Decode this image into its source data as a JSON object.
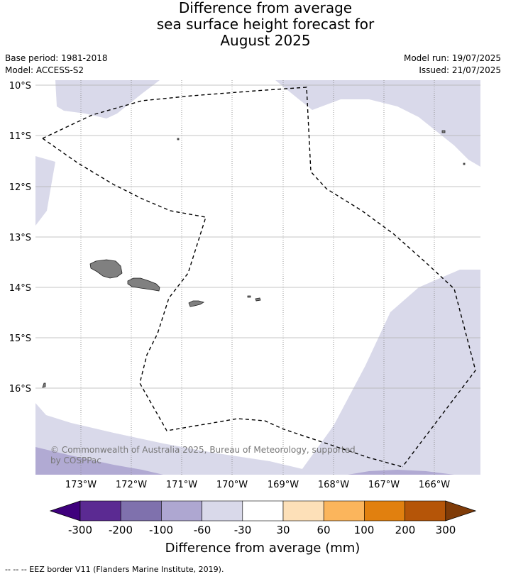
{
  "title_lines": [
    "Difference from average",
    "sea surface height forecast for",
    "August 2025"
  ],
  "meta": {
    "base_period": "Base period: 1981-2018",
    "model": "Model: ACCESS-S2",
    "model_run": "Model run: 19/07/2025",
    "issued": "Issued: 21/07/2025"
  },
  "map": {
    "lat_labels": [
      "10°S",
      "11°S",
      "12°S",
      "13°S",
      "14°S",
      "15°S",
      "16°S"
    ],
    "lon_labels": [
      "173°W",
      "172°W",
      "171°W",
      "170°W",
      "169°W",
      "168°W",
      "167°W",
      "166°W"
    ],
    "copyright_line1": "© Commonwealth of Australia 2025, Bureau of Meteorology, supported",
    "copyright_line2": "by COSPPac",
    "colors": {
      "ocean_neutral": "#ffffff",
      "anomaly_minus_30_to_60": "#d9d9ea",
      "anomaly_minus_60_to_100": "#b1aad3",
      "land": "#808080",
      "eez_line": "#000000",
      "grid": "#b0b0b0"
    }
  },
  "colorbar": {
    "label": "Difference from average (mm)",
    "ticks": [
      "-300",
      "-200",
      "-100",
      "-60",
      "-30",
      "30",
      "60",
      "100",
      "200",
      "300"
    ],
    "colors": [
      "#3f007d",
      "#5b2a92",
      "#7f71ad",
      "#aea7d1",
      "#d9d9ea",
      "#ffffff",
      "#fde0b8",
      "#fbb55c",
      "#e1800f",
      "#b55508",
      "#7f3b08"
    ]
  },
  "footnote": "--  --  -- EEZ border V11 (Flanders Marine Institute, 2019)."
}
